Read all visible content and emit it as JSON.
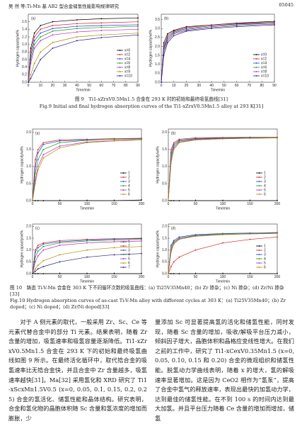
{
  "header": {
    "left": "吴 然 等:Ti-Mn 基 AB2 型合金储氢性能影响规律研究",
    "right": "05045"
  },
  "captions": {
    "fig9_cn": "图 9　Ti1-xZrxV0.5Mn1.5 合金在 293 K 时的初始和最终吸氢曲线[31]",
    "fig9_en": "Fig.9 Initial and final hydrogen absorption curves of the Ti1-xZrxV0.5Mn1.5 alloy at 293 K[31]",
    "fig10_cn": "图 10　铸态 Ti-V-Mn 合金在 303 K 下不同循环次数的吸氢曲线：(a) Ti25V35Mn40；(b) Zr 掺杂；(c) Ni 掺杂；(d) Zr/Ni 掺杂[33]",
    "fig10_en": "Fig.10 Hydrogen absorption curves of as-cast Ti-V-Mn alloy with different cycles at 303 K：(a) Ti25V35Mn40；(b) Zr doped；(c) Ni doped；(d) Zr/Ni doped[33]"
  },
  "body": {
    "left": "对于 A 侧元素的取代，一般采用 Zr、Sc、Ce 等元素代替合金中的部分 Ti 元素。结果表明，随着 Zr 含量的增加，吸氢速率和吸氢容量逐渐降低。Ti1-xZrxV0.5Mn1.5 合金在 293 K 下的初始和最终吸氢曲线如图 9 所示。在最终活化循环中，取代锆合金的吸氢速率比无锆合金快，并且合金中 Zr 含量越多，吸氢速率越快[31]。Ma[32] 采用氢化和 XRD 研究了 Ti1-xScxMn1.5V0.5 (x=0, 0.05, 0.1, 0.15, 0.2, 0.25) 合金的氢活化、储氢性能和晶体结构。研究表明，合金和氢化物的晶胞体积随 Sc 含量和氢浓度的增加而膨胀，少",
    "right": "量添加 Sc 可显著提高氢的活化和储氢性能，同时发现，随着 Sc 含量的增加，吸收/解吸平台压力减小，倾斜因子增大，晶胞体积和晶格应变线性增大。在我们之前的工作中，研究了 Ti1-xCexV0.35Mn1.5 (x=0, 0.05, 0.10, 0.15 和 0.20) 合金的微观组织和储氢性能。脱氢动力学曲线表明，随着 x 的增大，氢的解吸速率显著增加。这是因为 CeO2 相作为“氢泵”，提高了合金中氢气的释放速率，表现出最快的加氢动力学，达到最佳的储氢性能。在不到 100 s 的时间内达到最大加氢。并且平台压力随着 Ce 含量的增加而增加，储氢"
  },
  "chart_data": [
    {
      "type": "line",
      "title": "(a)",
      "x_label": "Time/min",
      "y_label": "Hydrogen capacity/wt%",
      "legend": "lower right",
      "x": [
        0,
        2,
        5,
        10,
        20,
        40,
        60,
        90
      ],
      "xlim": [
        0,
        90
      ],
      "ylim": [
        0,
        1.8
      ],
      "xticks": [
        0,
        10,
        20,
        30,
        40,
        50,
        60,
        70,
        80,
        90
      ],
      "yticks": [
        {
          "value": 0,
          "label": "0.0"
        },
        {
          "value": 0.2,
          "label": "0.2"
        },
        {
          "value": 0.4,
          "label": "0.4"
        },
        {
          "value": 0.6,
          "label": "0.6"
        },
        {
          "value": 0.8,
          "label": "0.8"
        },
        {
          "value": 1,
          "label": "1.0"
        },
        {
          "value": 1.2,
          "label": "1.2"
        },
        {
          "value": 1.4,
          "label": "1.4"
        },
        {
          "value": 1.6,
          "label": "1.6"
        }
      ],
      "series": [
        {
          "name": "x=0",
          "color": "#000000",
          "values": [
            0,
            0.9,
            1.3,
            1.5,
            1.6,
            1.65,
            1.68,
            1.7
          ]
        },
        {
          "name": "x=2",
          "color": "#d62020",
          "values": [
            0,
            0.8,
            1.2,
            1.4,
            1.5,
            1.55,
            1.57,
            1.6
          ]
        },
        {
          "name": "x=4",
          "color": "#1f3fcf",
          "values": [
            0,
            0.7,
            1.1,
            1.3,
            1.42,
            1.48,
            1.5,
            1.52
          ]
        },
        {
          "name": "x=6",
          "color": "#1a9a1a",
          "values": [
            0,
            0.6,
            1.0,
            1.2,
            1.35,
            1.42,
            1.45,
            1.48
          ]
        },
        {
          "name": "x=8",
          "color": "#c020c0",
          "values": [
            0,
            0.5,
            0.9,
            1.1,
            1.25,
            1.33,
            1.37,
            1.4
          ]
        },
        {
          "name": "x=9",
          "color": "#b08a00",
          "values": [
            0,
            0.2,
            0.5,
            0.8,
            1.05,
            1.2,
            1.25,
            1.3
          ]
        },
        {
          "name": "x=10",
          "color": "#202080",
          "values": [
            0,
            0.1,
            0.3,
            0.6,
            0.9,
            1.1,
            1.18,
            1.25
          ]
        }
      ]
    },
    {
      "type": "line",
      "title": "(b)",
      "x_label": "Time/min",
      "y_label": "Hydrogen capacity/wt%",
      "legend": "lower right",
      "x": [
        0,
        2,
        5,
        10,
        20,
        40,
        60,
        90
      ],
      "xlim": [
        0,
        90
      ],
      "ylim": [
        0,
        3.8
      ],
      "xticks": [
        0,
        10,
        20,
        30,
        40,
        50,
        60,
        70,
        80,
        90
      ],
      "yticks": [
        {
          "value": 0,
          "label": "0.0"
        },
        {
          "value": 0.5,
          "label": "0.5"
        },
        {
          "value": 1,
          "label": "1.0"
        },
        {
          "value": 1.5,
          "label": "1.5"
        },
        {
          "value": 2,
          "label": "2.0"
        },
        {
          "value": 2.5,
          "label": "2.5"
        },
        {
          "value": 3,
          "label": "3.0"
        },
        {
          "value": 3.5,
          "label": "3.5"
        }
      ],
      "series": [
        {
          "name": "x=0",
          "color": "#000000",
          "values": [
            0,
            2.2,
            2.7,
            2.9,
            3.1,
            3.2,
            3.3,
            3.4
          ]
        },
        {
          "name": "x=2",
          "color": "#d62020",
          "values": [
            0,
            2.0,
            2.6,
            2.85,
            3.05,
            3.2,
            3.28,
            3.35
          ]
        },
        {
          "name": "x=4",
          "color": "#1f3fcf",
          "values": [
            0,
            1.9,
            2.5,
            2.8,
            3.0,
            3.15,
            3.25,
            3.3
          ]
        },
        {
          "name": "x=6",
          "color": "#1a9a1a",
          "values": [
            0,
            1.8,
            2.4,
            2.75,
            2.95,
            3.1,
            3.2,
            3.3
          ]
        },
        {
          "name": "x=8",
          "color": "#c020c0",
          "values": [
            0,
            1.7,
            2.3,
            2.7,
            2.9,
            3.05,
            3.15,
            3.25
          ]
        },
        {
          "name": "x=10",
          "color": "#202080",
          "values": [
            0,
            1.5,
            2.2,
            2.6,
            2.85,
            3.0,
            3.1,
            3.2
          ]
        }
      ]
    },
    {
      "type": "line",
      "title": "(a)",
      "x_label": "Time/min",
      "y_label": "Hydrogen capacity/wt%",
      "legend": "lower right",
      "x": [
        0,
        5,
        10,
        20,
        50,
        100,
        150,
        200
      ],
      "xlim": [
        0,
        200
      ],
      "ylim": [
        0,
        2.1
      ],
      "xticks": [
        0,
        50,
        100,
        150,
        200
      ],
      "yticks": [
        {
          "value": 0,
          "label": "0.0"
        },
        {
          "value": 0.5,
          "label": "0.5"
        },
        {
          "value": 1,
          "label": "1.0"
        },
        {
          "value": 1.5,
          "label": "1.5"
        },
        {
          "value": 2,
          "label": "2.0"
        }
      ],
      "series": [
        {
          "name": "1",
          "color": "#000000",
          "values": [
            0,
            0,
            0,
            0,
            0,
            0,
            0,
            0.02
          ]
        },
        {
          "name": "2",
          "color": "#d62020",
          "values": [
            0,
            1.2,
            1.5,
            1.7,
            1.78,
            1.8,
            1.82,
            1.83
          ]
        },
        {
          "name": "3",
          "color": "#1f3fcf",
          "values": [
            0,
            1.0,
            1.4,
            1.65,
            1.75,
            1.78,
            1.8,
            1.82
          ]
        },
        {
          "name": "4",
          "color": "#1a9a1a",
          "values": [
            0,
            0.8,
            1.2,
            1.5,
            1.7,
            1.77,
            1.8,
            1.82
          ]
        },
        {
          "name": "5",
          "color": "#c020c0",
          "values": [
            0,
            0.6,
            1.0,
            1.35,
            1.6,
            1.72,
            1.76,
            1.8
          ]
        },
        {
          "name": "6",
          "color": "#b08a00",
          "values": [
            0,
            0.5,
            0.9,
            1.25,
            1.55,
            1.7,
            1.75,
            1.78
          ]
        }
      ]
    },
    {
      "type": "line",
      "title": "(b)",
      "x_label": "Time/min",
      "y_label": "Hydrogen capacity/wt%",
      "legend": "lower right",
      "x": [
        0,
        5,
        10,
        20,
        50,
        100,
        150,
        200
      ],
      "xlim": [
        0,
        200
      ],
      "ylim": [
        0,
        2.1
      ],
      "xticks": [
        0,
        50,
        100,
        150,
        200
      ],
      "yticks": [
        {
          "value": 0,
          "label": "0.0"
        },
        {
          "value": 0.5,
          "label": "0.5"
        },
        {
          "value": 1,
          "label": "1.0"
        },
        {
          "value": 1.5,
          "label": "1.5"
        },
        {
          "value": 2,
          "label": "2.0"
        }
      ],
      "series": [
        {
          "name": "1",
          "color": "#000000",
          "values": [
            0,
            0,
            0,
            0,
            0,
            0,
            0,
            0
          ]
        },
        {
          "name": "2",
          "color": "#d62020",
          "values": [
            0,
            1.5,
            1.7,
            1.8,
            1.84,
            1.85,
            1.86,
            1.86
          ]
        },
        {
          "name": "3",
          "color": "#1f3fcf",
          "values": [
            0,
            1.4,
            1.65,
            1.77,
            1.82,
            1.84,
            1.85,
            1.85
          ]
        },
        {
          "name": "4",
          "color": "#1a9a1a",
          "values": [
            0,
            1.3,
            1.6,
            1.75,
            1.8,
            1.83,
            1.84,
            1.85
          ]
        },
        {
          "name": "5",
          "color": "#c020c0",
          "values": [
            0,
            1.2,
            1.55,
            1.72,
            1.79,
            1.82,
            1.83,
            1.84
          ]
        },
        {
          "name": "6",
          "color": "#b08a00",
          "values": [
            0,
            1.1,
            1.5,
            1.7,
            1.78,
            1.81,
            1.83,
            1.84
          ]
        }
      ]
    },
    {
      "type": "line",
      "title": "(c)",
      "x_label": "Time/min",
      "y_label": "Hydrogen capacity/wt%",
      "legend": "lower right",
      "x": [
        0,
        5,
        10,
        20,
        50,
        100,
        150,
        200
      ],
      "xlim": [
        0,
        200
      ],
      "ylim": [
        0,
        2.1
      ],
      "xticks": [
        0,
        50,
        100,
        150,
        200
      ],
      "yticks": [
        {
          "value": 0,
          "label": "0.0"
        },
        {
          "value": 0.5,
          "label": "0.5"
        },
        {
          "value": 1,
          "label": "1.0"
        },
        {
          "value": 1.5,
          "label": "1.5"
        },
        {
          "value": 2,
          "label": "2.0"
        }
      ],
      "series": [
        {
          "name": "1",
          "color": "#000000",
          "values": [
            0,
            0,
            0,
            0,
            0,
            0,
            0,
            0
          ]
        },
        {
          "name": "2",
          "color": "#d62020",
          "values": [
            0,
            1.0,
            1.2,
            1.3,
            1.4,
            1.45,
            1.48,
            1.5
          ]
        },
        {
          "name": "3",
          "color": "#1f3fcf",
          "values": [
            0,
            0.9,
            1.1,
            1.25,
            1.35,
            1.42,
            1.46,
            1.48
          ]
        },
        {
          "name": "4",
          "color": "#1a9a1a",
          "values": [
            0,
            0.7,
            0.95,
            1.15,
            1.3,
            1.38,
            1.42,
            1.45
          ]
        },
        {
          "name": "5",
          "color": "#c020c0",
          "values": [
            0,
            0.5,
            0.75,
            1.0,
            1.2,
            1.3,
            1.35,
            1.38
          ]
        },
        {
          "name": "6",
          "color": "#b08a00",
          "values": [
            0,
            0.2,
            0.35,
            0.55,
            0.8,
            1.0,
            1.1,
            1.15
          ]
        },
        {
          "name": "7",
          "color": "#202080",
          "values": [
            0,
            0.1,
            0.2,
            0.3,
            0.5,
            0.7,
            0.8,
            0.85
          ]
        }
      ]
    },
    {
      "type": "line",
      "title": "(d)",
      "x_label": "Time/min",
      "y_label": "Hydrogen capacity/wt%",
      "legend": "lower right",
      "x": [
        0,
        5,
        10,
        20,
        50,
        100,
        150,
        200
      ],
      "xlim": [
        0,
        200
      ],
      "ylim": [
        0,
        2.1
      ],
      "xticks": [
        0,
        50,
        100,
        150,
        200
      ],
      "yticks": [
        {
          "value": 0,
          "label": "0.0"
        },
        {
          "value": 0.5,
          "label": "0.5"
        },
        {
          "value": 1,
          "label": "1.0"
        },
        {
          "value": 1.5,
          "label": "1.5"
        },
        {
          "value": 2,
          "label": "2.0"
        }
      ],
      "series": [
        {
          "name": "1",
          "color": "#000000",
          "values": [
            0,
            0,
            0,
            0,
            0,
            0,
            0,
            0
          ]
        },
        {
          "name": "2",
          "color": "#d62020",
          "values": [
            0,
            0.3,
            0.5,
            0.7,
            1.0,
            1.3,
            1.45,
            1.55
          ]
        },
        {
          "name": "3",
          "color": "#1f3fcf",
          "values": [
            0,
            1.2,
            1.4,
            1.55,
            1.65,
            1.7,
            1.72,
            1.74
          ]
        },
        {
          "name": "4",
          "color": "#1a9a1a",
          "values": [
            0,
            1.1,
            1.35,
            1.5,
            1.62,
            1.68,
            1.7,
            1.72
          ]
        },
        {
          "name": "5",
          "color": "#c020c0",
          "values": [
            0,
            1.0,
            1.3,
            1.48,
            1.6,
            1.66,
            1.69,
            1.71
          ]
        },
        {
          "name": "6",
          "color": "#b08a00",
          "values": [
            0,
            0.9,
            1.25,
            1.45,
            1.58,
            1.65,
            1.68,
            1.7
          ]
        }
      ]
    }
  ]
}
